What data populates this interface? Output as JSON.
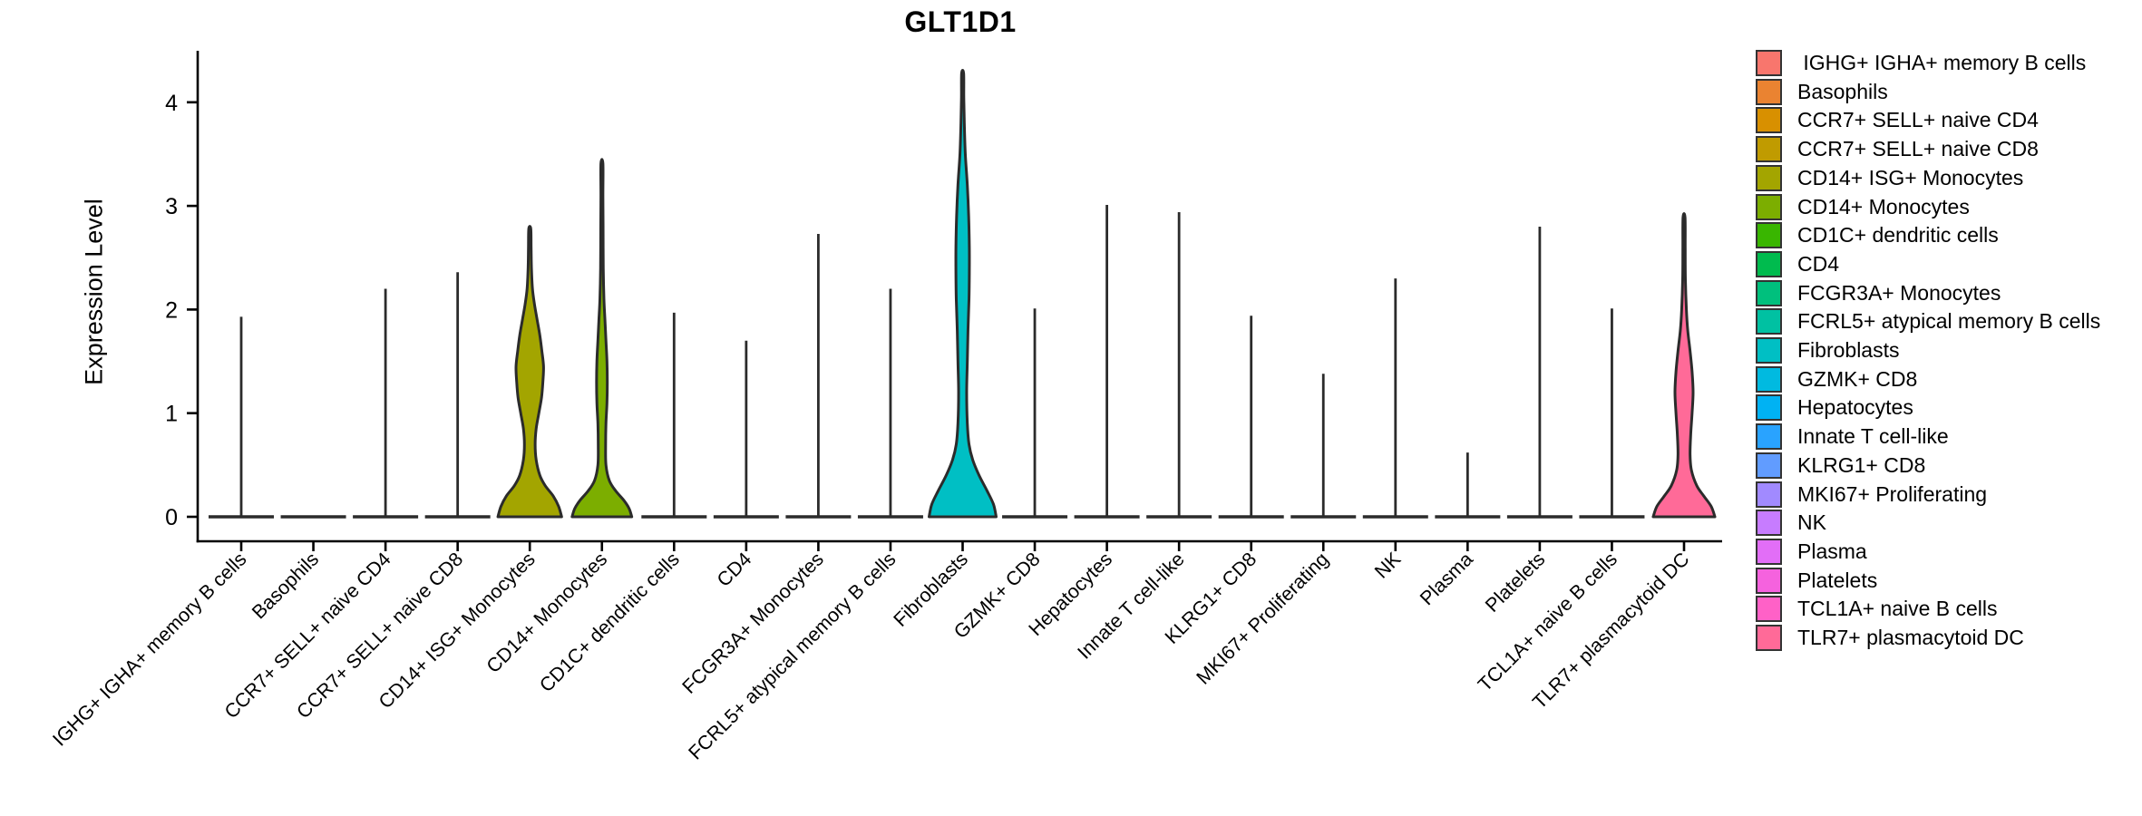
{
  "title": "GLT1D1",
  "y_axis": {
    "label": "Expression Level"
  },
  "legend": {
    "swatch_border_color": "#333333",
    "items": [
      {
        "label": " IGHG+ IGHA+ memory B cells",
        "color": "#F8766D"
      },
      {
        "label": "Basophils",
        "color": "#EA8331"
      },
      {
        "label": "CCR7+ SELL+ naive CD4",
        "color": "#D89000"
      },
      {
        "label": "CCR7+ SELL+ naive CD8",
        "color": "#C09B00"
      },
      {
        "label": "CD14+ ISG+ Monocytes",
        "color": "#A3A500"
      },
      {
        "label": "CD14+ Monocytes",
        "color": "#7CAE00"
      },
      {
        "label": "CD1C+ dendritic cells",
        "color": "#39B600"
      },
      {
        "label": "CD4",
        "color": "#00BB4E"
      },
      {
        "label": "FCGR3A+ Monocytes",
        "color": "#00C07D"
      },
      {
        "label": "FCRL5+ atypical memory B cells",
        "color": "#00C1A2"
      },
      {
        "label": "Fibroblasts",
        "color": "#00BFC4"
      },
      {
        "label": "GZMK+ CD8",
        "color": "#00BAE0"
      },
      {
        "label": "Hepatocytes",
        "color": "#00B2F3"
      },
      {
        "label": "Innate T cell-like",
        "color": "#29A3FF"
      },
      {
        "label": "KLRG1+ CD8",
        "color": "#619CFF"
      },
      {
        "label": "MKI67+ Proliferating",
        "color": "#A18AFF"
      },
      {
        "label": "NK",
        "color": "#C77CFF"
      },
      {
        "label": "Plasma",
        "color": "#E26EF7"
      },
      {
        "label": "Platelets",
        "color": "#F562DE"
      },
      {
        "label": "TCL1A+ naive B cells",
        "color": "#FF61C7"
      },
      {
        "label": "TLR7+ plasmacytoid DC",
        "color": "#FF6A98"
      }
    ]
  },
  "chart_data": {
    "type": "violin",
    "title": "GLT1D1",
    "xlabel": "",
    "ylabel": "Expression Level",
    "ylim": [
      0,
      4.45
    ],
    "yticks": [
      0,
      1,
      2,
      3,
      4
    ],
    "grid": false,
    "legend_position": "right",
    "outline_color": "#2b2b2b",
    "categories": [
      "IGHG+ IGHA+ memory B cells",
      "Basophils",
      "CCR7+ SELL+ naive CD4",
      "CCR7+ SELL+ naive CD8",
      "CD14+ ISG+ Monocytes",
      "CD14+ Monocytes",
      "CD1C+ dendritic cells",
      "CD4",
      "FCGR3A+ Monocytes",
      "FCRL5+ atypical memory B cells",
      "Fibroblasts",
      "GZMK+ CD8",
      "Hepatocytes",
      "Innate T cell-like",
      "KLRG1+ CD8",
      "MKI67+ Proliferating",
      "NK",
      "Plasma",
      "Platelets",
      "TCL1A+ naive B cells",
      "TLR7+ plasmacytoid DC"
    ],
    "colors": [
      "#F8766D",
      "#EA8331",
      "#D89000",
      "#C09B00",
      "#A3A500",
      "#7CAE00",
      "#39B600",
      "#00BB4E",
      "#00C07D",
      "#00C1A2",
      "#00BFC4",
      "#00BAE0",
      "#00B2F3",
      "#29A3FF",
      "#619CFF",
      "#A18AFF",
      "#C77CFF",
      "#E26EF7",
      "#F562DE",
      "#FF61C7",
      "#FF6A98"
    ],
    "series": [
      {
        "name": "IGHG+ IGHA+ memory B cells",
        "max_expression": 1.93,
        "profile": null
      },
      {
        "name": "Basophils",
        "max_expression": 0,
        "profile": null
      },
      {
        "name": "CCR7+ SELL+ naive CD4",
        "max_expression": 2.2,
        "profile": null
      },
      {
        "name": "CCR7+ SELL+ naive CD8",
        "max_expression": 2.36,
        "profile": null
      },
      {
        "name": "CD14+ ISG+ Monocytes",
        "max_expression": 2.78,
        "profile": [
          [
            0,
            0.95
          ],
          [
            0.1,
            0.86
          ],
          [
            0.2,
            0.7
          ],
          [
            0.3,
            0.46
          ],
          [
            0.4,
            0.3
          ],
          [
            0.55,
            0.19
          ],
          [
            0.7,
            0.16
          ],
          [
            0.85,
            0.19
          ],
          [
            1.0,
            0.27
          ],
          [
            1.15,
            0.35
          ],
          [
            1.3,
            0.39
          ],
          [
            1.45,
            0.41
          ],
          [
            1.6,
            0.36
          ],
          [
            1.75,
            0.3
          ],
          [
            1.9,
            0.22
          ],
          [
            2.05,
            0.14
          ],
          [
            2.2,
            0.08
          ],
          [
            2.4,
            0.05
          ],
          [
            2.6,
            0.04
          ],
          [
            2.78,
            0.03
          ]
        ]
      },
      {
        "name": "CD14+ Monocytes",
        "max_expression": 3.41,
        "profile": [
          [
            0,
            0.89
          ],
          [
            0.08,
            0.81
          ],
          [
            0.16,
            0.65
          ],
          [
            0.25,
            0.41
          ],
          [
            0.35,
            0.22
          ],
          [
            0.5,
            0.12
          ],
          [
            0.7,
            0.11
          ],
          [
            0.9,
            0.12
          ],
          [
            1.1,
            0.15
          ],
          [
            1.3,
            0.16
          ],
          [
            1.5,
            0.15
          ],
          [
            1.7,
            0.12
          ],
          [
            1.9,
            0.09
          ],
          [
            2.1,
            0.06
          ],
          [
            2.4,
            0.04
          ],
          [
            2.8,
            0.035
          ],
          [
            3.1,
            0.03
          ],
          [
            3.41,
            0.03
          ]
        ]
      },
      {
        "name": "CD1C+ dendritic cells",
        "max_expression": 1.97,
        "profile": null
      },
      {
        "name": "CD4",
        "max_expression": 1.7,
        "profile": null
      },
      {
        "name": "FCGR3A+ Monocytes",
        "max_expression": 2.73,
        "profile": null
      },
      {
        "name": "FCRL5+ atypical memory B cells",
        "max_expression": 2.2,
        "profile": null
      },
      {
        "name": "Fibroblasts",
        "max_expression": 4.28,
        "profile": [
          [
            0,
            1.0
          ],
          [
            0.12,
            0.92
          ],
          [
            0.25,
            0.73
          ],
          [
            0.4,
            0.49
          ],
          [
            0.55,
            0.3
          ],
          [
            0.7,
            0.19
          ],
          [
            0.9,
            0.14
          ],
          [
            1.2,
            0.12
          ],
          [
            1.5,
            0.14
          ],
          [
            1.8,
            0.16
          ],
          [
            2.1,
            0.19
          ],
          [
            2.35,
            0.2
          ],
          [
            2.6,
            0.2
          ],
          [
            2.9,
            0.18
          ],
          [
            3.2,
            0.14
          ],
          [
            3.5,
            0.08
          ],
          [
            3.8,
            0.05
          ],
          [
            4.05,
            0.035
          ],
          [
            4.28,
            0.03
          ]
        ]
      },
      {
        "name": "GZMK+ CD8",
        "max_expression": 2.01,
        "profile": null
      },
      {
        "name": "Hepatocytes",
        "max_expression": 3.01,
        "profile": null
      },
      {
        "name": "Innate T cell-like",
        "max_expression": 2.94,
        "profile": null
      },
      {
        "name": "KLRG1+ CD8",
        "max_expression": 1.94,
        "profile": null
      },
      {
        "name": "MKI67+ Proliferating",
        "max_expression": 1.38,
        "profile": null
      },
      {
        "name": "NK",
        "max_expression": 2.3,
        "profile": null
      },
      {
        "name": "Plasma",
        "max_expression": 0.62,
        "profile": null
      },
      {
        "name": "Platelets",
        "max_expression": 2.8,
        "profile": null
      },
      {
        "name": "TCL1A+ naive B cells",
        "max_expression": 2.01,
        "profile": null
      },
      {
        "name": "TLR7+ plasmacytoid DC",
        "max_expression": 2.89,
        "profile": [
          [
            0,
            0.92
          ],
          [
            0.1,
            0.81
          ],
          [
            0.2,
            0.59
          ],
          [
            0.3,
            0.38
          ],
          [
            0.45,
            0.22
          ],
          [
            0.6,
            0.18
          ],
          [
            0.8,
            0.2
          ],
          [
            1.0,
            0.24
          ],
          [
            1.2,
            0.27
          ],
          [
            1.4,
            0.24
          ],
          [
            1.6,
            0.18
          ],
          [
            1.8,
            0.11
          ],
          [
            2.0,
            0.07
          ],
          [
            2.3,
            0.04
          ],
          [
            2.6,
            0.035
          ],
          [
            2.89,
            0.03
          ]
        ]
      }
    ]
  }
}
